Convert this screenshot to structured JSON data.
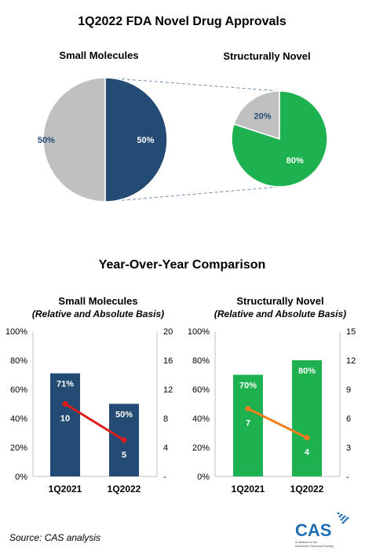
{
  "page_title": "1Q2022 FDA Novel Drug Approvals",
  "colors": {
    "navy": "#234b74",
    "gray": "#c0c0c0",
    "green": "#1db14f",
    "red_line": "#e01b1b",
    "orange_line": "#f07d1e",
    "connector": "#6f8fb0",
    "cas_blue": "#1f6fb6"
  },
  "chart_data": [
    {
      "type": "pie",
      "title": "Small Molecules",
      "slices": [
        {
          "label": "50%",
          "value": 50,
          "color": "#234b74"
        },
        {
          "label": "50%",
          "value": 50,
          "color": "#c0c0c0"
        }
      ]
    },
    {
      "type": "pie",
      "title": "Structurally Novel",
      "slices": [
        {
          "label": "80%",
          "value": 80,
          "color": "#1db14f"
        },
        {
          "label": "20%",
          "value": 20,
          "color": "#c0c0c0"
        }
      ]
    },
    {
      "type": "bar",
      "title": "Small Molecules",
      "subtitle": "(Relative and Absolute Basis)",
      "categories": [
        "1Q2021",
        "1Q2022"
      ],
      "bar_values": [
        71,
        50
      ],
      "bar_labels": [
        "71%",
        "50%"
      ],
      "bar_color": "#234b74",
      "ylim": [
        0,
        100
      ],
      "y_ticks": [
        "0%",
        "20%",
        "40%",
        "60%",
        "80%",
        "100%"
      ],
      "line_values": [
        10,
        5
      ],
      "line_labels": [
        "10",
        "5"
      ],
      "line_color": "#e01b1b",
      "y2lim": [
        0,
        20
      ],
      "y2_ticks": [
        "-",
        "4",
        "8",
        "12",
        "16",
        "20"
      ]
    },
    {
      "type": "bar",
      "title": "Structurally Novel",
      "subtitle": "(Relative and Absolute Basis)",
      "categories": [
        "1Q2021",
        "1Q2022"
      ],
      "bar_values": [
        70,
        80
      ],
      "bar_labels": [
        "70%",
        "80%"
      ],
      "bar_color": "#1db14f",
      "ylim": [
        0,
        100
      ],
      "y_ticks": [
        "0%",
        "20%",
        "40%",
        "60%",
        "80%",
        "100%"
      ],
      "line_values": [
        7,
        4
      ],
      "line_labels": [
        "7",
        "4"
      ],
      "line_color": "#f07d1e",
      "y2lim": [
        0,
        15
      ],
      "y2_ticks": [
        "-",
        "3",
        "6",
        "9",
        "12",
        "15"
      ]
    }
  ],
  "section_title": "Year-Over-Year Comparison",
  "source": "Source: CAS analysis",
  "logo": {
    "text": "CAS",
    "tagline_1": "A division of the",
    "tagline_2": "American Chemical Society"
  }
}
